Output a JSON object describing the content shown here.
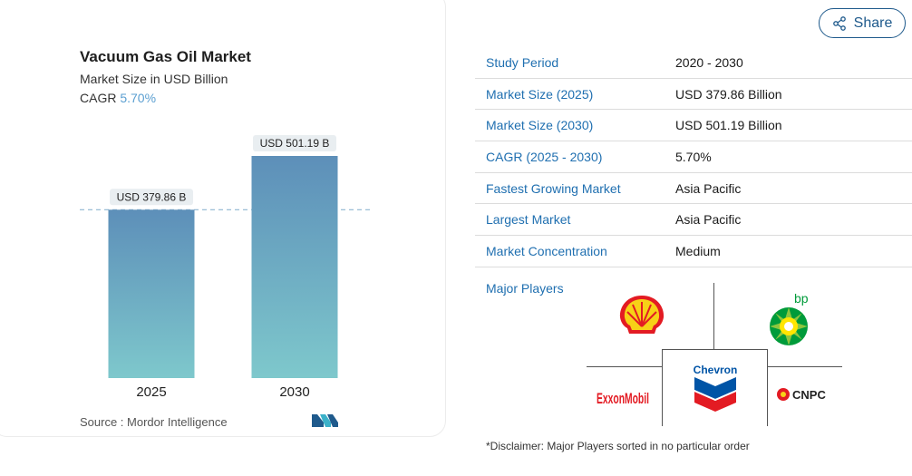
{
  "chart": {
    "title": "Vacuum Gas Oil Market",
    "subtitle": "Market Size in USD Billion",
    "cagr_label": "CAGR",
    "cagr_value": "5.70%",
    "source": "Source :  Mordor Intelligence"
  },
  "chart_data": {
    "type": "bar",
    "title": "Vacuum Gas Oil Market",
    "categories": [
      "2025",
      "2030"
    ],
    "values": [
      379.86,
      501.19
    ],
    "data_labels": [
      "USD 379.86 B",
      "USD 501.19 B"
    ],
    "ylim": [
      0,
      501.19
    ],
    "grid": false,
    "reference_line": 379.86,
    "bar_color_top": "#5d8fb9",
    "bar_color_bottom": "#7ec8cc"
  },
  "share": {
    "label": "Share"
  },
  "facts": [
    {
      "key": "Study Period",
      "value": "2020 - 2030"
    },
    {
      "key": "Market Size (2025)",
      "value": "USD 379.86 Billion"
    },
    {
      "key": "Market Size (2030)",
      "value": "USD 501.19 Billion"
    },
    {
      "key": "CAGR (2025 - 2030)",
      "value": "5.70%"
    },
    {
      "key": "Fastest Growing Market",
      "value": "Asia Pacific"
    },
    {
      "key": "Largest Market",
      "value": "Asia Pacific"
    },
    {
      "key": "Market Concentration",
      "value": "Medium"
    }
  ],
  "players": {
    "label": "Major Players",
    "logos": [
      "Shell",
      "bp",
      "ExxonMobil",
      "Chevron",
      "CNPC"
    ]
  },
  "disclaimer": "*Disclaimer: Major Players sorted in no particular order"
}
